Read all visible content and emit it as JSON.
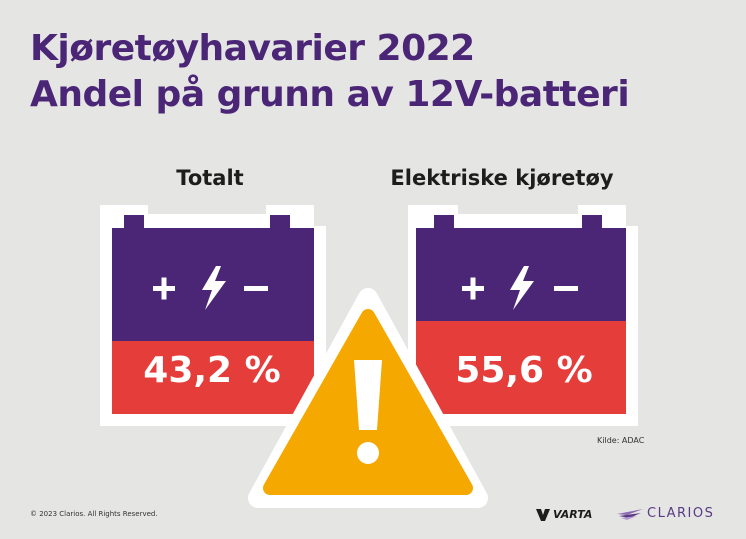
{
  "title": {
    "line1": "Kjøretøyhavarier 2022",
    "line2": "Andel på grunn av 12V-batteri"
  },
  "batteries": [
    {
      "label": "Totalt",
      "value": "43,2 %",
      "percent": 43.2,
      "symbols": "+ ϟ –"
    },
    {
      "label": "Elektriske kjøretøy",
      "value": "55,6 %",
      "percent": 55.6,
      "symbols": "+ ϟ –"
    }
  ],
  "source": "Kilde: ADAC",
  "copyright": "© 2023 Clarios. All Rights Reserved.",
  "logos": {
    "varta": "VARTA",
    "clarios": "CLARIOS"
  },
  "colors": {
    "background": "#e5e5e4",
    "purple": "#4b2677",
    "red": "#e53d3a",
    "warning_yellow": "#f5a800",
    "white": "#ffffff"
  }
}
